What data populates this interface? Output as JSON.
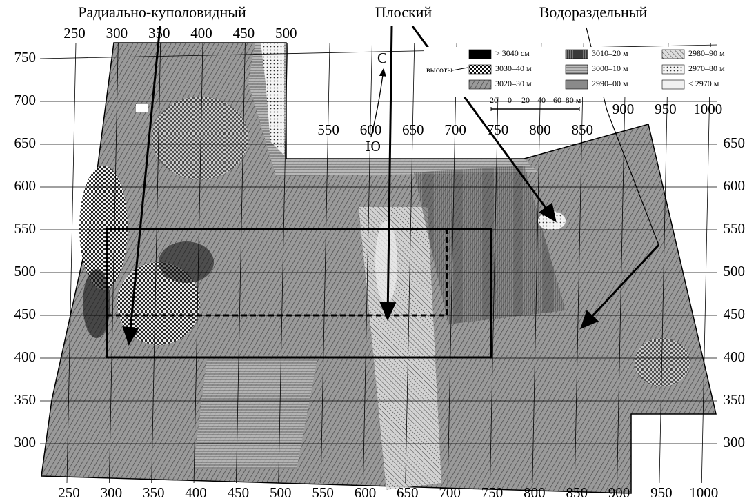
{
  "titles": {
    "radial": "Радиально-куполовидный",
    "flat": "Плоский",
    "watershed": "Водораздельный"
  },
  "axes": {
    "x_top_left": [
      250,
      300,
      350,
      400,
      450,
      500
    ],
    "x_top_middle": [
      550,
      600,
      650,
      700,
      750,
      800,
      850
    ],
    "x_top_right": [
      900,
      950,
      1000
    ],
    "x_bottom": [
      250,
      300,
      350,
      400,
      450,
      500,
      550,
      600,
      650,
      700,
      750,
      800,
      850,
      900,
      950,
      1000
    ],
    "y_left": [
      750,
      700,
      650,
      600,
      550,
      500,
      450,
      400,
      350,
      300
    ],
    "y_right": [
      650,
      600,
      550,
      500,
      450,
      400,
      350,
      300
    ]
  },
  "legend": {
    "label": "высоты",
    "items": [
      "> 3040 см",
      "3030–40 м",
      "3020–30 м",
      "3010–20 м",
      "3000–10 м",
      "2990–00 м",
      "2980–90 м",
      "2970–80 м",
      "< 2970 м"
    ]
  },
  "scale_bar": [
    "20",
    "0",
    "20",
    "40",
    "60",
    "80 м"
  ],
  "compass": {
    "north": "С",
    "south": "Ю"
  }
}
